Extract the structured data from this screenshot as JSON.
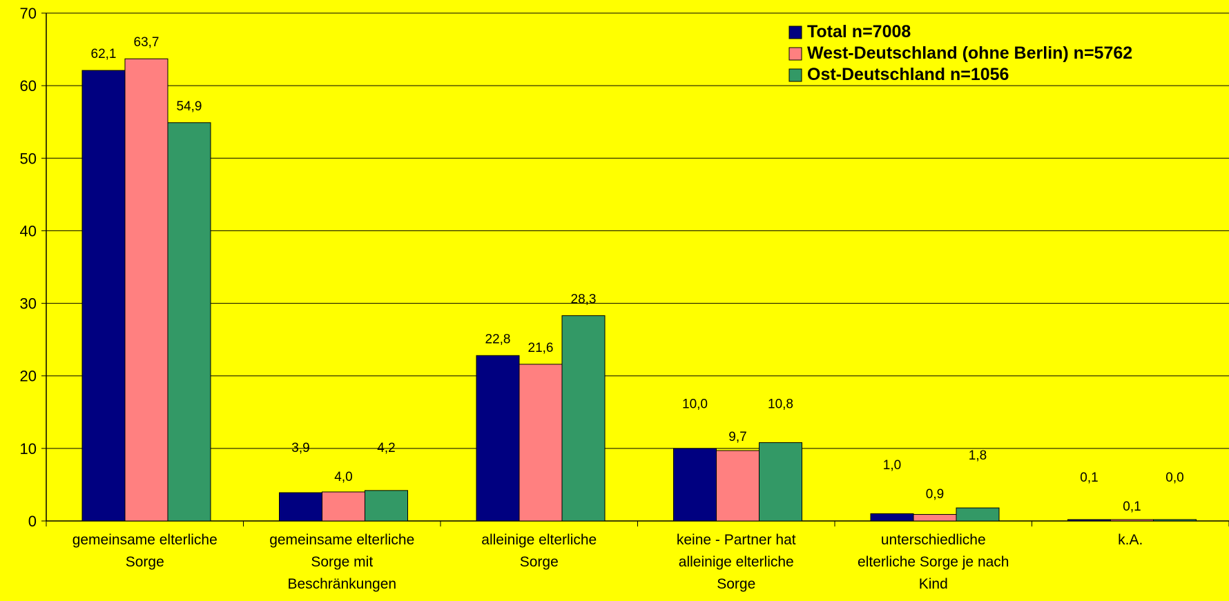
{
  "chart_data": {
    "type": "bar",
    "title": "",
    "xlabel": "",
    "ylabel": "",
    "ylim": [
      0,
      70
    ],
    "yticks": [
      0,
      10,
      20,
      30,
      40,
      50,
      60,
      70
    ],
    "grid": true,
    "legend_position": "top-right",
    "categories": [
      [
        "gemeinsame elterliche",
        "Sorge"
      ],
      [
        "gemeinsame elterliche",
        "Sorge mit",
        "Beschränkungen"
      ],
      [
        "alleinige elterliche",
        "Sorge"
      ],
      [
        "keine - Partner hat",
        "alleinige elterliche",
        "Sorge"
      ],
      [
        "unterschiedliche",
        "elterliche Sorge je nach",
        "Kind"
      ],
      [
        "k.A."
      ]
    ],
    "series": [
      {
        "name": "Total n=7008",
        "color": "#000080",
        "values": [
          62.1,
          3.9,
          22.8,
          10.0,
          1.0,
          0.1
        ],
        "labels": [
          "62,1",
          "3,9",
          "22,8",
          "10,0",
          "1,0",
          "0,1"
        ]
      },
      {
        "name": "West-Deutschland (ohne Berlin) n=5762",
        "color": "#FF8080",
        "values": [
          63.7,
          4.0,
          21.6,
          9.7,
          0.9,
          0.1
        ],
        "labels": [
          "63,7",
          "4,0",
          "21,6",
          "9,7",
          "0,9",
          "0,1"
        ]
      },
      {
        "name": "Ost-Deutschland n=1056",
        "color": "#339966",
        "values": [
          54.9,
          4.2,
          28.3,
          10.8,
          1.8,
          0.0
        ],
        "labels": [
          "54,9",
          "4,2",
          "28,3",
          "10,8",
          "1,8",
          "0,0"
        ]
      }
    ]
  }
}
